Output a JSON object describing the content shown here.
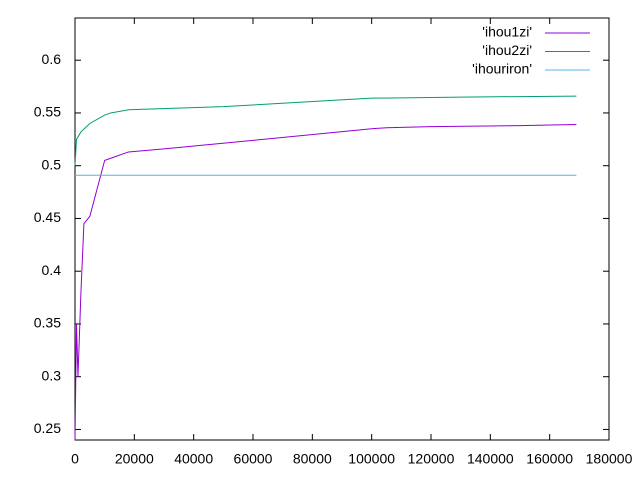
{
  "chart_data": {
    "type": "line",
    "series": [
      {
        "name": "'ihou1zi'",
        "color": "#9400d3",
        "x": [
          0,
          500,
          1000,
          2000,
          3000,
          5000,
          10000,
          13000,
          18000,
          30000,
          60000,
          100000,
          105000,
          120000,
          150000,
          169000
        ],
        "values": [
          0.24,
          0.35,
          0.3,
          0.38,
          0.445,
          0.452,
          0.505,
          0.508,
          0.513,
          0.516,
          0.524,
          0.535,
          0.536,
          0.537,
          0.538,
          0.539
        ]
      },
      {
        "name": "'ihou2zi'",
        "color": "#009e73",
        "x": [
          0,
          500,
          2000,
          5000,
          10000,
          12000,
          18000,
          50000,
          100000,
          130000,
          169000
        ],
        "values": [
          0.5,
          0.525,
          0.532,
          0.54,
          0.548,
          0.55,
          0.553,
          0.556,
          0.564,
          0.565,
          0.566
        ]
      },
      {
        "name": "'ihouriron'",
        "color": "#56b4e9",
        "x": [
          0,
          169000
        ],
        "values": [
          0.491,
          0.491
        ]
      }
    ],
    "xlim": [
      0,
      180000
    ],
    "xticks": [
      0,
      20000,
      40000,
      60000,
      80000,
      100000,
      120000,
      140000,
      160000,
      180000
    ],
    "ylim": [
      0.24,
      0.64
    ],
    "yticks": [
      0.25,
      0.3,
      0.35,
      0.4,
      0.45,
      0.5,
      0.55,
      0.6
    ],
    "legend": "top-right"
  }
}
